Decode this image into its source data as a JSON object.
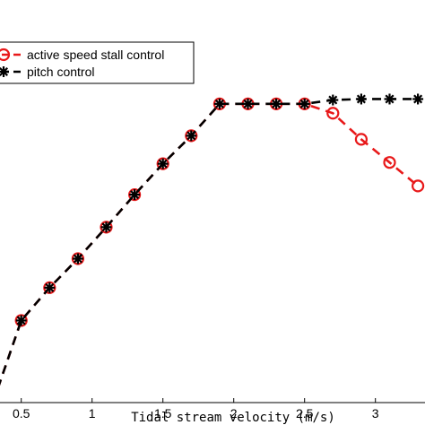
{
  "chart_data": {
    "type": "line",
    "title": "",
    "xlabel": "Tidal stream velocity (m/s)",
    "ylabel": "",
    "xlim": [
      0.35,
      3.35
    ],
    "ylim": [
      0.0,
      1.0
    ],
    "xticks": [
      "0.5",
      "1",
      "1.5",
      "2",
      "2.5",
      "3"
    ],
    "xtick_values": [
      0.5,
      1.0,
      1.5,
      2.0,
      2.5,
      3.0
    ],
    "grid": false,
    "legend_position": "top-left",
    "series": [
      {
        "name": "active speed stall control",
        "color": "#e8191a",
        "marker": "circle",
        "linestyle": "dashed",
        "x": [
          0.3,
          0.5,
          0.7,
          0.9,
          1.1,
          1.3,
          1.5,
          1.7,
          1.9,
          2.1,
          2.3,
          2.5,
          2.7,
          2.9,
          3.1,
          3.3
        ],
        "y": [
          0.0,
          0.255,
          0.357,
          0.447,
          0.545,
          0.646,
          0.742,
          0.829,
          0.928,
          0.928,
          0.928,
          0.928,
          0.899,
          0.818,
          0.746,
          0.673
        ]
      },
      {
        "name": "pitch control",
        "color": "#000000",
        "marker": "asterisk",
        "linestyle": "dashed",
        "x": [
          0.3,
          0.5,
          0.7,
          0.9,
          1.1,
          1.3,
          1.5,
          1.7,
          1.9,
          2.1,
          2.3,
          2.5,
          2.7,
          2.9,
          3.1,
          3.3
        ],
        "y": [
          0.0,
          0.255,
          0.357,
          0.447,
          0.545,
          0.646,
          0.742,
          0.829,
          0.928,
          0.928,
          0.928,
          0.928,
          0.94,
          0.943,
          0.943,
          0.943
        ]
      }
    ]
  }
}
